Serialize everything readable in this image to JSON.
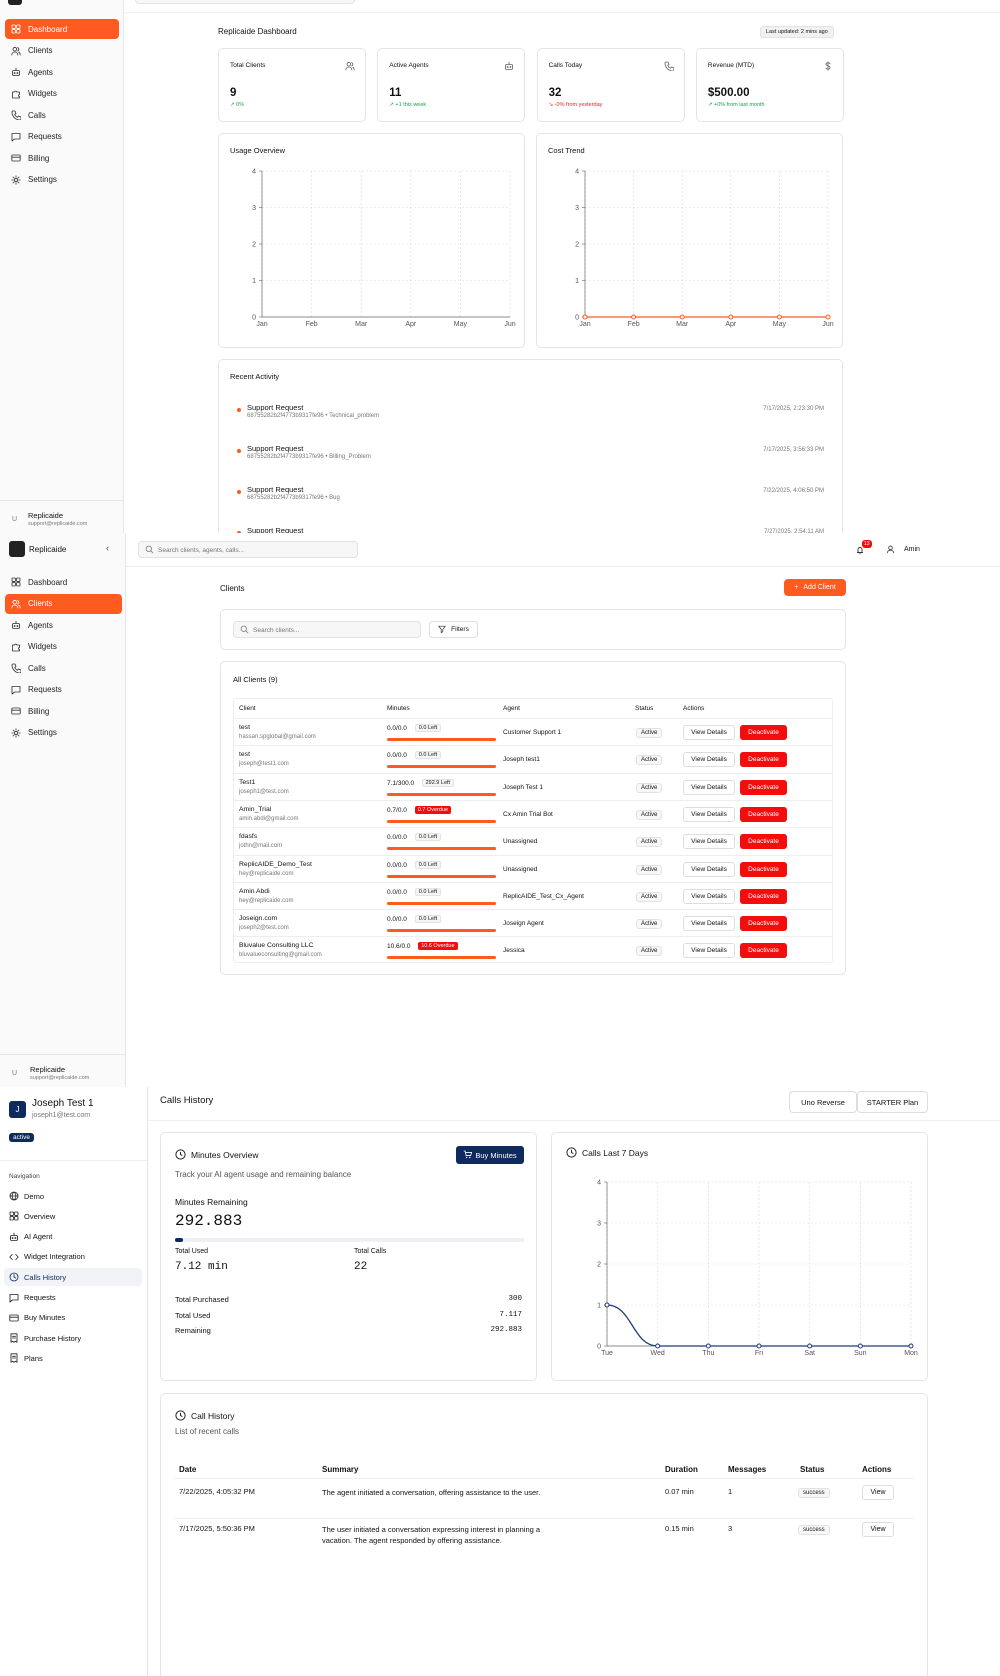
{
  "s1": {
    "title": "Replicaide Dashboard",
    "last_updated": "Last updated: 2 mins ago",
    "nav": [
      {
        "label": "Dashboard",
        "icon": "grid-icon",
        "active": true
      },
      {
        "label": "Clients",
        "icon": "users-icon"
      },
      {
        "label": "Agents",
        "icon": "bot-icon"
      },
      {
        "label": "Widgets",
        "icon": "puzzle-icon"
      },
      {
        "label": "Calls",
        "icon": "phone-icon"
      },
      {
        "label": "Requests",
        "icon": "message-icon"
      },
      {
        "label": "Billing",
        "icon": "card-icon"
      },
      {
        "label": "Settings",
        "icon": "gear-icon"
      }
    ],
    "stats": [
      {
        "label": "Total Clients",
        "value": "9",
        "sub": "↗ 0%",
        "icon": "users-icon",
        "tone": "green"
      },
      {
        "label": "Active Agents",
        "value": "11",
        "sub": "↗ +1 this week",
        "icon": "bot-icon",
        "tone": "green"
      },
      {
        "label": "Calls Today",
        "value": "32",
        "sub": "↘ -0% from yesterday",
        "icon": "phone-icon",
        "tone": "red"
      },
      {
        "label": "Revenue (MTD)",
        "value": "$500.00",
        "sub": "↗ +0% from last month",
        "icon": "dollar-icon",
        "tone": "green"
      }
    ],
    "usage_title": "Usage Overview",
    "cost_title": "Cost Trend",
    "recent_title": "Recent Activity",
    "activity": [
      {
        "title": "Support Request",
        "sub": "68755282b2f4773b9317fe96 • Technical_problem",
        "time": "7/17/2025, 2:23:30 PM"
      },
      {
        "title": "Support Request",
        "sub": "68755282b2f4773b9317fe96 • Billing_Problem",
        "time": "7/17/2025, 3:56:33 PM"
      },
      {
        "title": "Support Request",
        "sub": "68755282b2f4773b9317fe96 • Bug",
        "time": "7/22/2025, 4:06:50 PM"
      },
      {
        "title": "Support Request",
        "sub": "",
        "time": "7/27/2025, 2:54:11 AM"
      }
    ],
    "user_name": "Replicaide",
    "user_email": "support@replicaide.com",
    "user_initial": "U"
  },
  "chart_data": [
    {
      "type": "line",
      "title": "Usage Overview",
      "categories": [
        "Jan",
        "Feb",
        "Mar",
        "Apr",
        "May",
        "Jun"
      ],
      "series": [],
      "ylim": [
        0,
        4
      ],
      "yticks": [
        0,
        1,
        2,
        3,
        4
      ],
      "grid": true
    },
    {
      "type": "line",
      "title": "Cost Trend",
      "categories": [
        "Jan",
        "Feb",
        "Mar",
        "Apr",
        "May",
        "Jun"
      ],
      "series": [
        {
          "values": [
            0,
            0,
            0,
            0,
            0,
            0
          ],
          "color": "#ff5a1f"
        }
      ],
      "ylim": [
        0,
        4
      ],
      "yticks": [
        0,
        1,
        2,
        3,
        4
      ],
      "grid": true
    },
    {
      "type": "line",
      "title": "Calls Last 7 Days",
      "categories": [
        "Tue",
        "Wed",
        "Thu",
        "Fri",
        "Sat",
        "Sun",
        "Mon"
      ],
      "series": [
        {
          "values": [
            1,
            0,
            0,
            0,
            0,
            0,
            0
          ],
          "color": "#1e3a7b"
        }
      ],
      "ylim": [
        0,
        4
      ],
      "yticks": [
        0,
        1,
        2,
        3,
        4
      ],
      "grid": true
    }
  ],
  "s2": {
    "brand": "Replicaide",
    "search_placeholder": "Search clients, agents, calls...",
    "notif_count": "13",
    "user": "Amin",
    "title": "Clients",
    "add_client": "Add Client",
    "client_search_placeholder": "Search clients...",
    "filters": "Filters",
    "all_clients": "All Clients (9)",
    "columns": [
      "Client",
      "Minutes",
      "Agent",
      "Status",
      "Actions"
    ],
    "view_details": "View Details",
    "deactivate": "Deactivate",
    "clients": [
      {
        "name": "test",
        "email": "hassan.spglobal@gmail.com",
        "minutes": "0.0/0.0",
        "left": "0.0 Left",
        "overdue": false,
        "agent": "Customer Support 1",
        "status": "Active"
      },
      {
        "name": "test",
        "email": "joseph@test1.com",
        "minutes": "0.0/0.0",
        "left": "0.0 Left",
        "overdue": false,
        "agent": "Joseph test1",
        "status": "Active"
      },
      {
        "name": "Test1",
        "email": "joseph1@test.com",
        "minutes": "7.1/300.0",
        "left": "292.9 Left",
        "overdue": false,
        "agent": "Joseph Test 1",
        "status": "Active"
      },
      {
        "name": "Amin_Trial",
        "email": "amin.abdi@gmail.com",
        "minutes": "0.7/0.0",
        "left": "0.7 Overdue",
        "overdue": true,
        "agent": "Cx Amin Trial Bot",
        "status": "Active"
      },
      {
        "name": "fdasfs",
        "email": "jothn@mail.com",
        "minutes": "0.0/0.0",
        "left": "0.0 Left",
        "overdue": false,
        "agent": "Unassigned",
        "status": "Active"
      },
      {
        "name": "ReplicAIDE_Demo_Test",
        "email": "hey@replicaide.com",
        "minutes": "0.0/0.0",
        "left": "0.0 Left",
        "overdue": false,
        "agent": "Unassigned",
        "status": "Active"
      },
      {
        "name": "Amin Abdi",
        "email": "hey@replicaide.com",
        "minutes": "0.0/0.0",
        "left": "0.0 Left",
        "overdue": false,
        "agent": "ReplicAIDE_Test_Cx_Agent",
        "status": "Active"
      },
      {
        "name": "Joseign.com",
        "email": "joseph2@test.com",
        "minutes": "0.0/0.0",
        "left": "0.0 Left",
        "overdue": false,
        "agent": "Joseign Agent",
        "status": "Active"
      },
      {
        "name": "Bluvalue Consulting LLC",
        "email": "bluvalueconsulting@gmail.com",
        "minutes": "10.6/0.0",
        "left": "10.6 Overdue",
        "overdue": true,
        "agent": "Jessica",
        "status": "Active"
      }
    ]
  },
  "s3": {
    "initial": "J",
    "name": "Joseph Test 1",
    "email": "joseph1@test.com",
    "status": "active",
    "nav_heading": "Navigation",
    "nav": [
      {
        "label": "Demo",
        "icon": "globe-icon"
      },
      {
        "label": "Overview",
        "icon": "grid-icon"
      },
      {
        "label": "AI Agent",
        "icon": "bot-icon"
      },
      {
        "label": "Widget Integration",
        "icon": "code-icon"
      },
      {
        "label": "Calls History",
        "icon": "clock-icon",
        "active": true
      },
      {
        "label": "Requests",
        "icon": "message-icon"
      },
      {
        "label": "Buy Minutes",
        "icon": "card-icon"
      },
      {
        "label": "Purchase History",
        "icon": "receipt-icon"
      },
      {
        "label": "Plans",
        "icon": "receipt-icon"
      }
    ],
    "page_title": "Calls History",
    "header_buttons": [
      "Uno Reverse",
      "STARTER Plan"
    ],
    "minutes_title": "Minutes Overview",
    "buy_minutes": "Buy Minutes",
    "minutes_sub": "Track your AI agent usage and remaining balance",
    "remaining_label": "Minutes Remaining",
    "remaining_value": "292.883",
    "progress_fraction": 0.024,
    "total_used_label": "Total Used",
    "total_used_value": "7.12 min",
    "total_calls_label": "Total Calls",
    "total_calls_value": "22",
    "summary": [
      {
        "label": "Total Purchased",
        "value": "300"
      },
      {
        "label": "Total Used",
        "value": "7.117"
      },
      {
        "label": "Remaining",
        "value": "292.883"
      }
    ],
    "calls7_title": "Calls Last 7 Days",
    "history_title": "Call History",
    "history_sub": "List of recent calls",
    "history_cols": [
      "Date",
      "Summary",
      "Duration",
      "Messages",
      "Status",
      "Actions"
    ],
    "history": [
      {
        "date": "7/22/2025, 4:05:32 PM",
        "summary": "The agent initiated a conversation, offering assistance to the user.",
        "duration": "0.07 min",
        "messages": "1",
        "status": "success",
        "action": "View"
      },
      {
        "date": "7/17/2025, 5:50:36 PM",
        "summary": "The user initiated a conversation expressing interest in planning a vacation. The agent responded by offering assistance.",
        "duration": "0.15 min",
        "messages": "3",
        "status": "success",
        "action": "View"
      }
    ]
  }
}
